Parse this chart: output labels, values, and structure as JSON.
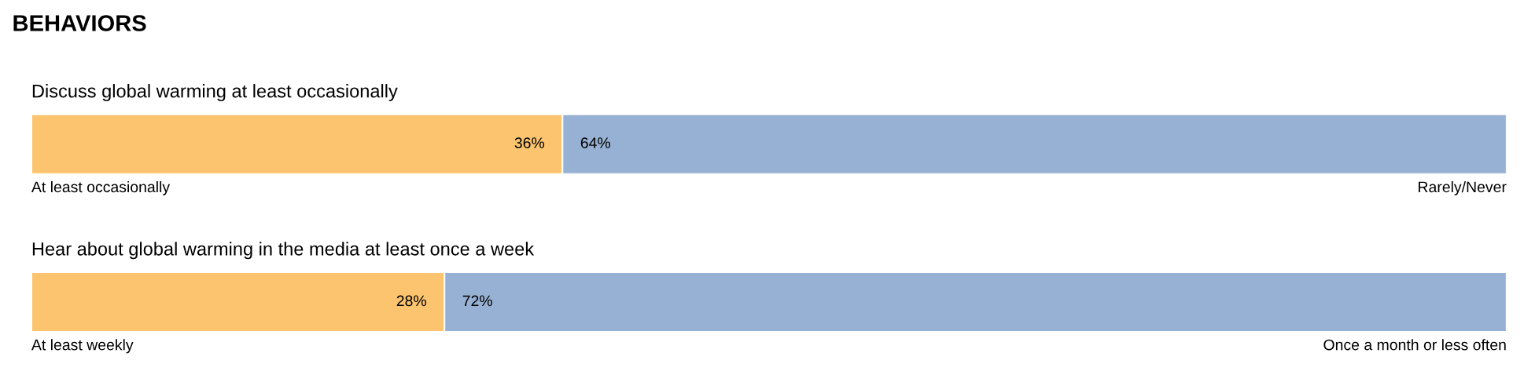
{
  "chart_data": [
    {
      "type": "bar",
      "orientation": "horizontal",
      "stacked": true,
      "title": "Discuss global warming at least occasionally",
      "annotations": [
        "BEHAVIORS"
      ],
      "categories": [
        null
      ],
      "legend": "bottom",
      "series": [
        {
          "name": "At least occasionally",
          "color": "#fcc46e",
          "values": [
            36
          ],
          "value_labels": [
            "36%"
          ]
        },
        {
          "name": "Rarely/Never",
          "color": "#97b1d4",
          "values": [
            64
          ],
          "value_labels": [
            "64%"
          ]
        }
      ]
    },
    {
      "type": "bar",
      "orientation": "horizontal",
      "stacked": true,
      "title": "Hear about global warming in the media at least once a week",
      "categories": [
        null
      ],
      "legend": "bottom",
      "series": [
        {
          "name": "At least weekly",
          "color": "#fcc46e",
          "values": [
            28
          ],
          "value_labels": [
            "28%"
          ]
        },
        {
          "name": "Once a month or less often",
          "color": "#97b1d4",
          "values": [
            72
          ],
          "value_labels": [
            "72%"
          ]
        }
      ]
    }
  ]
}
